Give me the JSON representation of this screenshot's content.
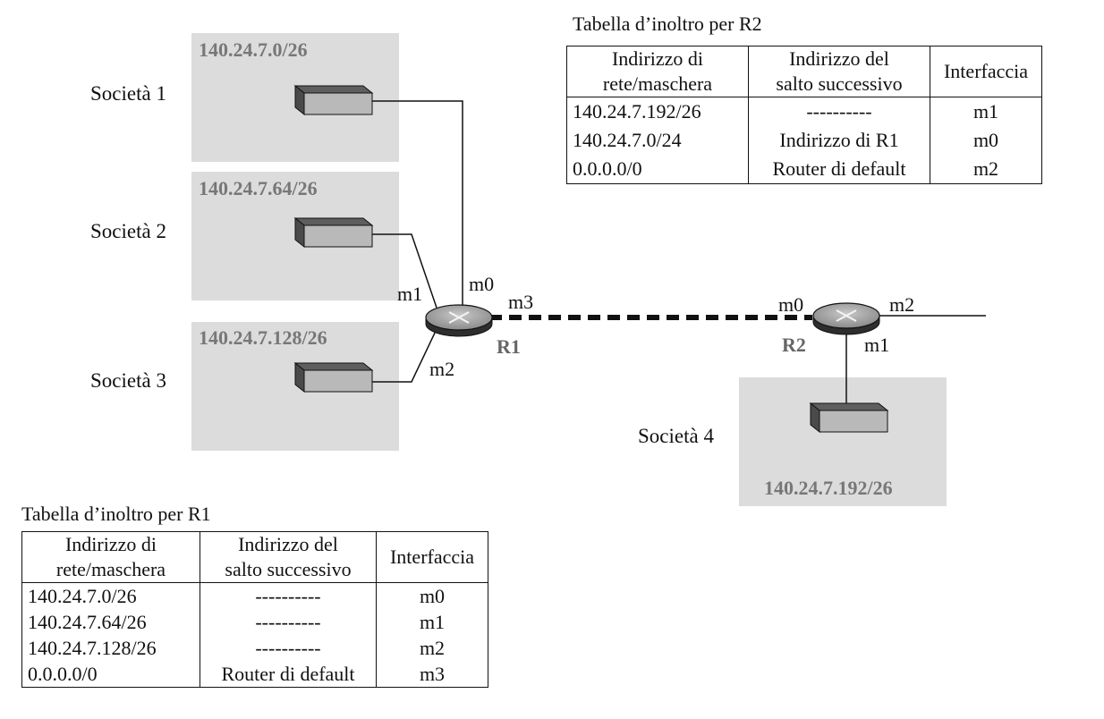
{
  "companies": {
    "c1": {
      "name": "Società 1",
      "network": "140.24.7.0/26"
    },
    "c2": {
      "name": "Società 2",
      "network": "140.24.7.64/26"
    },
    "c3": {
      "name": "Società 3",
      "network": "140.24.7.128/26"
    },
    "c4": {
      "name": "Società 4",
      "network": "140.24.7.192/26"
    }
  },
  "routers": {
    "r1": {
      "label": "R1",
      "if_m0": "m0",
      "if_m1": "m1",
      "if_m2": "m2",
      "if_m3": "m3"
    },
    "r2": {
      "label": "R2",
      "if_m0": "m0",
      "if_m1": "m1",
      "if_m2": "m2"
    }
  },
  "table_r2": {
    "title": "Tabella d’inoltro per R2",
    "headers": {
      "net_line1": "Indirizzo di",
      "net_line2": "rete/maschera",
      "hop_line1": "Indirizzo del",
      "hop_line2": "salto successivo",
      "iface": "Interfaccia"
    },
    "rows": [
      {
        "net": "140.24.7.192/26",
        "hop": "----------",
        "iface": "m1"
      },
      {
        "net": "140.24.7.0/24",
        "hop": "Indirizzo di R1",
        "iface": "m0"
      },
      {
        "net": "0.0.0.0/0",
        "hop": "Router di default",
        "iface": "m2"
      }
    ]
  },
  "table_r1": {
    "title": "Tabella d’inoltro per R1",
    "headers": {
      "net_line1": "Indirizzo di",
      "net_line2": "rete/maschera",
      "hop_line1": "Indirizzo del",
      "hop_line2": "salto successivo",
      "iface": "Interfaccia"
    },
    "rows": [
      {
        "net": "140.24.7.0/26",
        "hop": "----------",
        "iface": "m0"
      },
      {
        "net": "140.24.7.64/26",
        "hop": "----------",
        "iface": "m1"
      },
      {
        "net": "140.24.7.128/26",
        "hop": "----------",
        "iface": "m2"
      },
      {
        "net": "0.0.0.0/0",
        "hop": "Router di default",
        "iface": "m3"
      }
    ]
  },
  "colors": {
    "subnet_box": "#dcdcdc",
    "subnet_label": "#777777",
    "router_label": "#666666"
  }
}
